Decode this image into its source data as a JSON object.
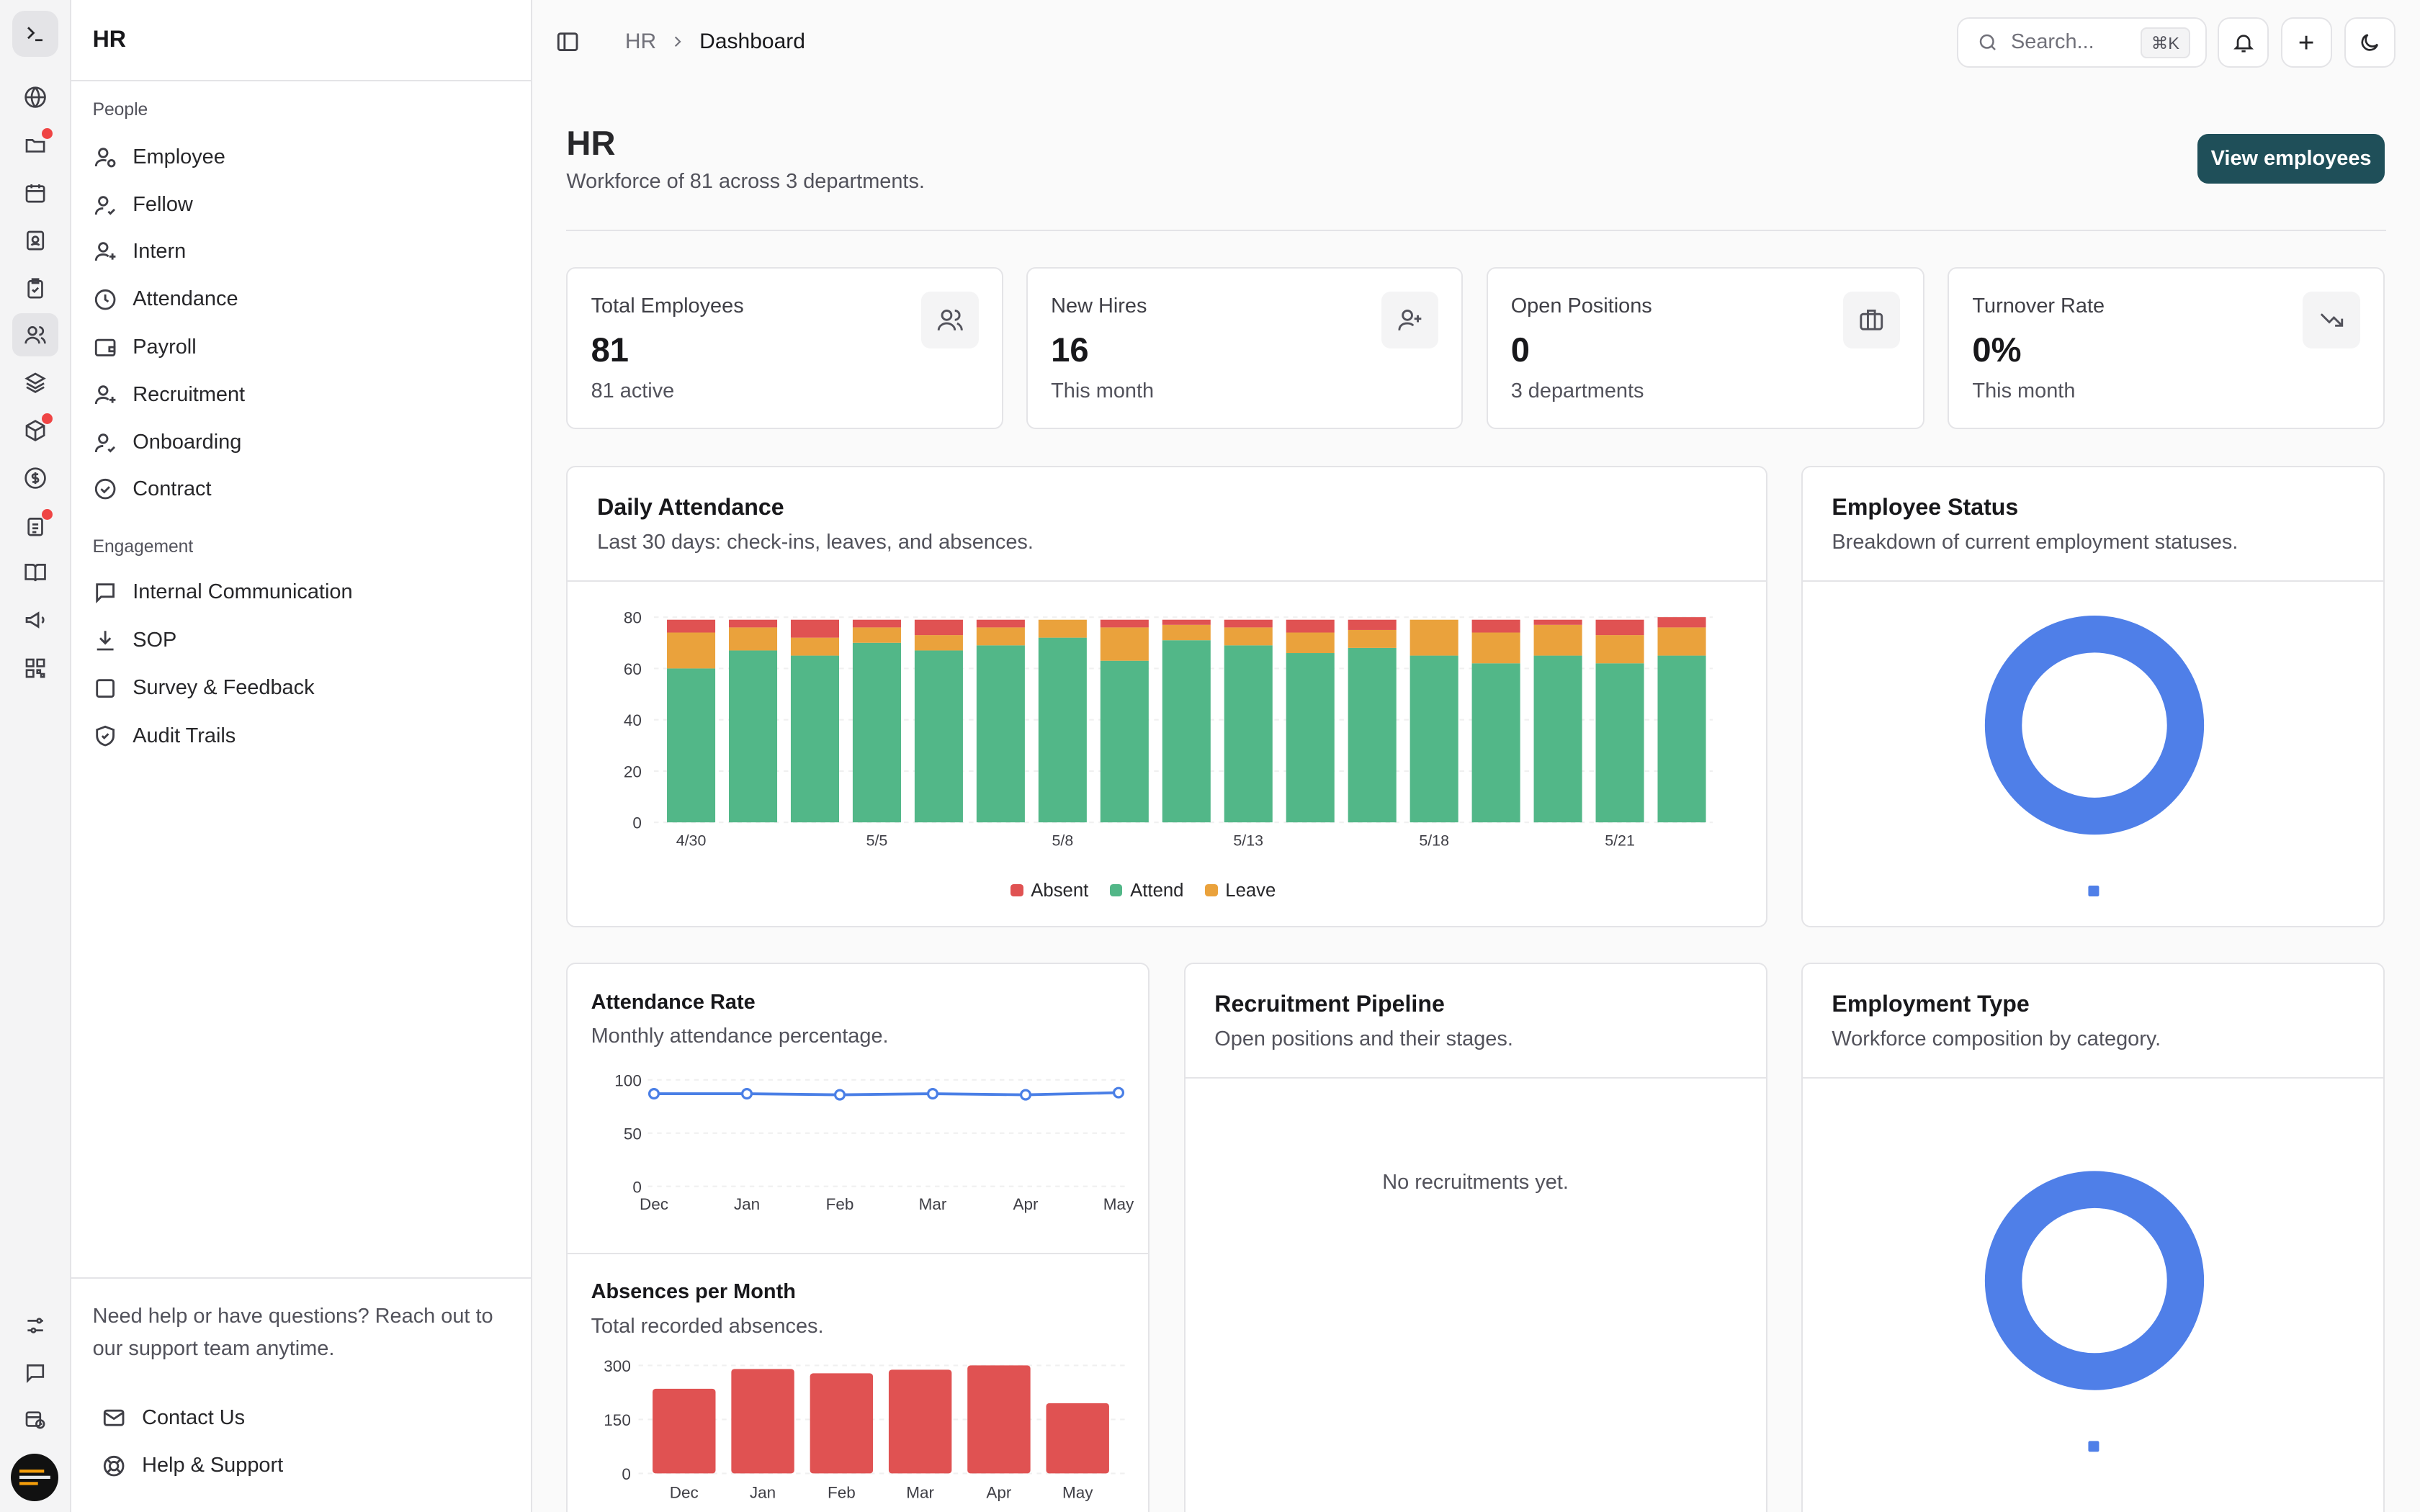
{
  "sidebar": {
    "title": "HR",
    "groups": [
      {
        "label": "People"
      },
      {
        "label": "Engagement"
      }
    ],
    "items": [
      {
        "label": "Employee",
        "icon": "user-cog-icon"
      },
      {
        "label": "Fellow",
        "icon": "user-check-icon"
      },
      {
        "label": "Intern",
        "icon": "user-plus-icon"
      },
      {
        "label": "Attendance",
        "icon": "clock-icon"
      },
      {
        "label": "Payroll",
        "icon": "wallet-icon"
      },
      {
        "label": "Recruitment",
        "icon": "user-plus-icon"
      },
      {
        "label": "Onboarding",
        "icon": "user-check-icon"
      },
      {
        "label": "Contract",
        "icon": "check-circle-icon"
      },
      {
        "label": "Internal Communication",
        "icon": "message-square-icon"
      },
      {
        "label": "SOP",
        "icon": "download-icon"
      },
      {
        "label": "Survey & Feedback",
        "icon": "square-icon"
      },
      {
        "label": "Audit Trails",
        "icon": "shield-check-icon"
      }
    ],
    "help_text": "Need help or have questions? Reach out to our support team anytime.",
    "contact_label": "Contact Us",
    "support_label": "Help & Support"
  },
  "topbar": {
    "breadcrumb": [
      "HR",
      "Dashboard"
    ],
    "search_placeholder": "Search...",
    "search_shortcut": "⌘K"
  },
  "header": {
    "title": "HR",
    "subtitle": "Workforce of 81 across 3 departments.",
    "primary_action": "View employees"
  },
  "stats": [
    {
      "label": "Total Employees",
      "value": "81",
      "sub": "81 active",
      "icon": "users-icon"
    },
    {
      "label": "New Hires",
      "value": "16",
      "sub": "This month",
      "icon": "user-plus-icon"
    },
    {
      "label": "Open Positions",
      "value": "0",
      "sub": "3 departments",
      "icon": "briefcase-icon"
    },
    {
      "label": "Turnover Rate",
      "value": "0%",
      "sub": "This month",
      "icon": "trending-down-icon"
    }
  ],
  "cards": {
    "daily_attendance": {
      "title": "Daily Attendance",
      "subtitle": "Last 30 days: check-ins, leaves, and absences."
    },
    "employee_status": {
      "title": "Employee Status",
      "subtitle": "Breakdown of current employment statuses."
    },
    "attendance_rate": {
      "title": "Attendance Rate",
      "subtitle": "Monthly attendance percentage."
    },
    "absences": {
      "title": "Absences per Month",
      "subtitle": "Total recorded absences."
    },
    "recruitment": {
      "title": "Recruitment Pipeline",
      "subtitle": "Open positions and their stages.",
      "empty": "No recruitments yet."
    },
    "employment_type": {
      "title": "Employment Type",
      "subtitle": "Workforce composition by category."
    }
  },
  "colors": {
    "absent": "#e05252",
    "attend": "#52b788",
    "leave": "#eaa23c",
    "line": "#4a7fe6",
    "donut": "#4f7fe8",
    "primary": "#1f4f59"
  },
  "chart_data": [
    {
      "type": "bar",
      "stacked": true,
      "title": "Daily Attendance",
      "x_ticks": [
        "4/30",
        "5/5",
        "5/8",
        "5/13",
        "5/18",
        "5/21"
      ],
      "x_tick_positions": [
        0,
        3,
        6,
        9,
        12,
        15
      ],
      "ylim": [
        0,
        80
      ],
      "y_ticks": [
        0,
        20,
        40,
        60,
        80
      ],
      "legend": [
        "Absent",
        "Attend",
        "Leave"
      ],
      "series": [
        {
          "name": "Attend",
          "values": [
            60,
            67,
            65,
            70,
            67,
            69,
            72,
            63,
            71,
            69,
            66,
            68,
            65,
            62,
            65,
            62,
            65
          ]
        },
        {
          "name": "Leave",
          "values": [
            14,
            9,
            7,
            6,
            6,
            7,
            7,
            13,
            6,
            7,
            8,
            7,
            14,
            12,
            12,
            11,
            11
          ]
        },
        {
          "name": "Absent",
          "values": [
            5,
            3,
            7,
            3,
            6,
            3,
            0,
            3,
            2,
            3,
            5,
            4,
            0,
            5,
            2,
            6,
            4
          ]
        }
      ]
    },
    {
      "type": "pie",
      "title": "Employee Status",
      "values": [
        81
      ],
      "categories": [
        ""
      ]
    },
    {
      "type": "line",
      "title": "Attendance Rate",
      "categories": [
        "Dec",
        "Jan",
        "Feb",
        "Mar",
        "Apr",
        "May"
      ],
      "values": [
        87,
        87,
        86,
        87,
        86,
        88
      ],
      "ylim": [
        0,
        100
      ],
      "y_ticks": [
        0,
        50,
        100
      ]
    },
    {
      "type": "bar",
      "title": "Absences per Month",
      "categories": [
        "Dec",
        "Jan",
        "Feb",
        "Mar",
        "Apr",
        "May"
      ],
      "values": [
        235,
        290,
        278,
        288,
        300,
        195
      ],
      "ylim": [
        0,
        300
      ],
      "y_ticks": [
        0,
        150,
        300
      ]
    },
    {
      "type": "pie",
      "title": "Employment Type",
      "values": [
        81
      ],
      "categories": [
        ""
      ]
    }
  ]
}
